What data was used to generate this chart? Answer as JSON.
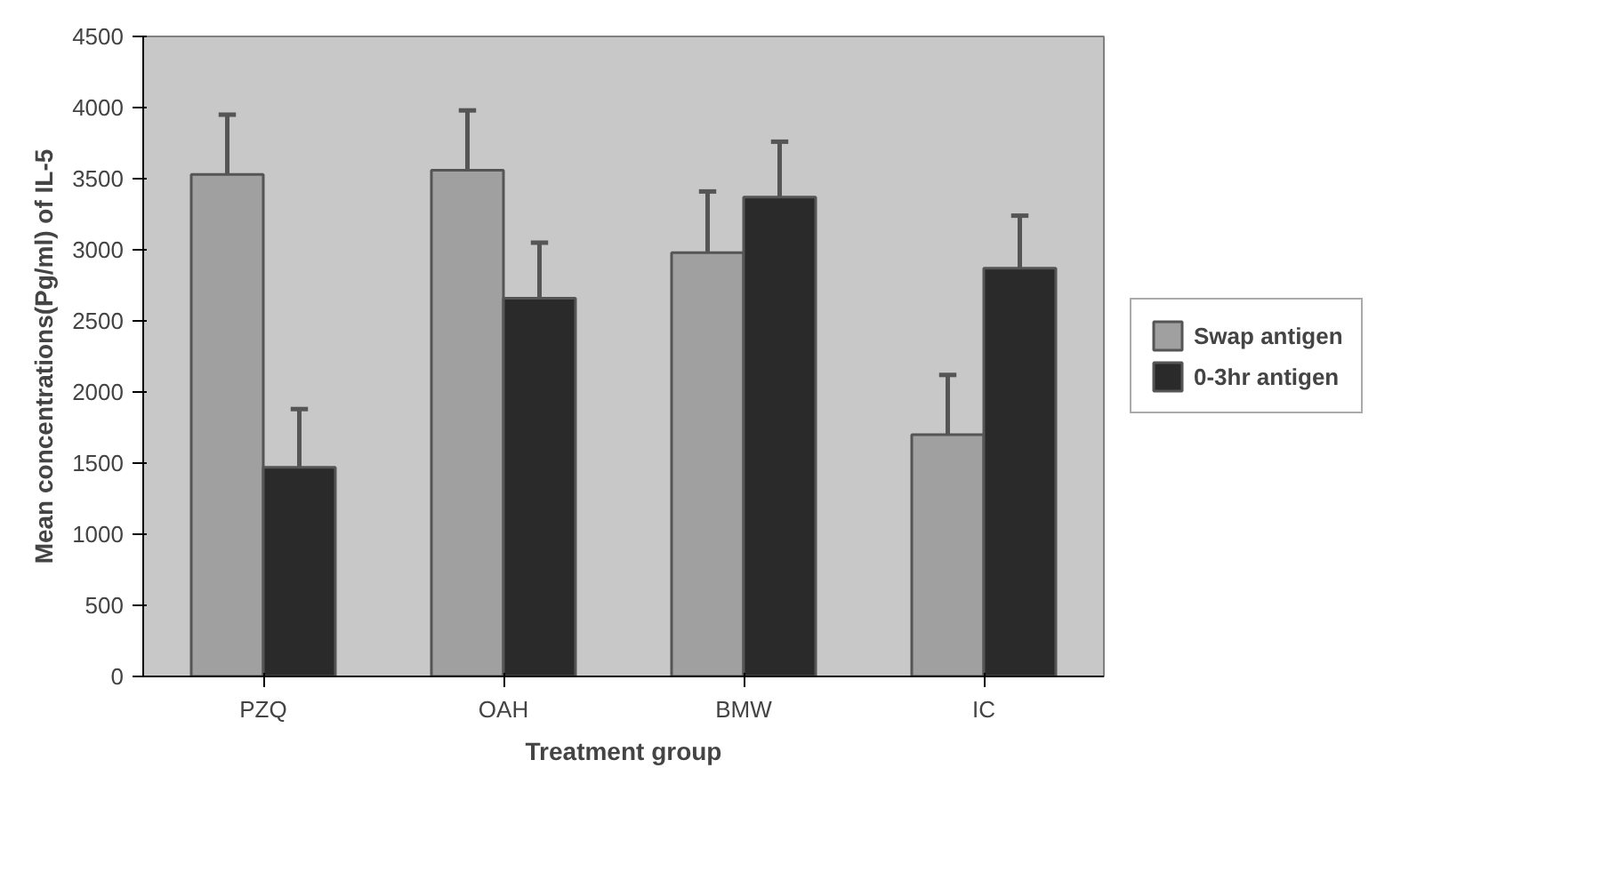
{
  "chart_data": {
    "type": "bar",
    "xlabel": "Treatment group",
    "ylabel": "Mean concentrations(Pg/ml) of IL-5",
    "categories": [
      "PZQ",
      "OAH",
      "BMW",
      "IC"
    ],
    "series": [
      {
        "name": "Swap antigen",
        "color": "#a0a0a0",
        "values": [
          3530,
          3560,
          2980,
          1700
        ],
        "errors": [
          [
            3530,
            3950
          ],
          [
            3560,
            3980
          ],
          [
            2980,
            3410
          ],
          [
            1700,
            2120
          ]
        ]
      },
      {
        "name": "0-3hr antigen",
        "color": "#2a2a2a",
        "values": [
          1470,
          2660,
          3370,
          2870
        ],
        "errors": [
          [
            1470,
            1880
          ],
          [
            2660,
            3050
          ],
          [
            3370,
            3760
          ],
          [
            2870,
            3240
          ]
        ]
      }
    ],
    "ylim": [
      0,
      4500
    ],
    "yticks": [
      0,
      500,
      1000,
      1500,
      2000,
      2500,
      3000,
      3500,
      4000,
      4500
    ],
    "grid": false,
    "legend": "right"
  }
}
